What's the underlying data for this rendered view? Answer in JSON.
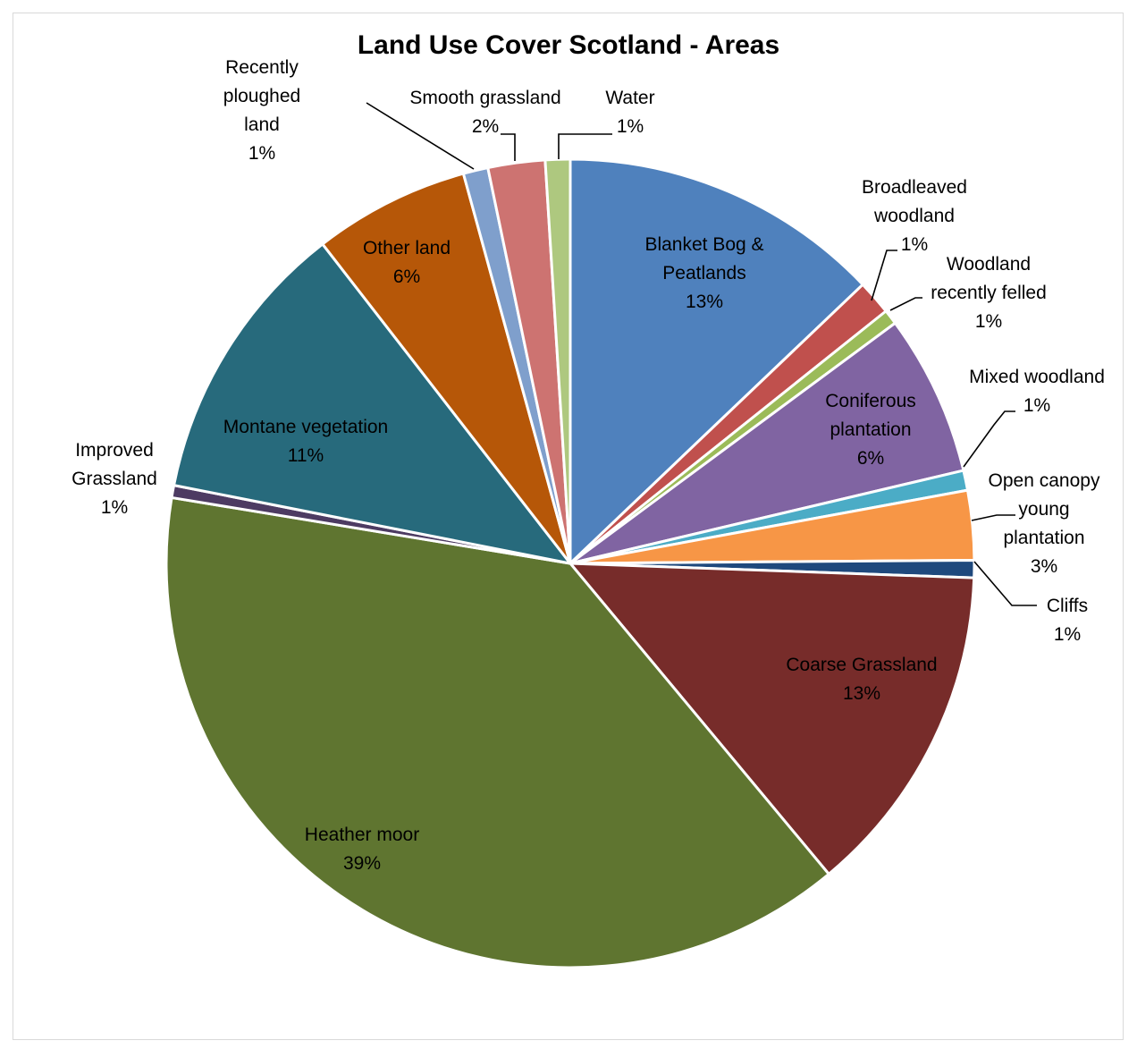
{
  "chart_data": {
    "type": "pie",
    "title": "Land Use Cover Scotland - Areas",
    "slices": [
      {
        "name": "Blanket Bog & Peatlands",
        "value": 13,
        "pct_label": "13%",
        "color": "#4f81bd"
      },
      {
        "name": "Broadleaved woodland",
        "value": 1.4,
        "pct_label": "1%",
        "color": "#c0504d"
      },
      {
        "name": "Woodland recently felled",
        "value": 0.6,
        "pct_label": "1%",
        "color": "#9bbb59"
      },
      {
        "name": "Coniferous plantation",
        "value": 6.5,
        "pct_label": "6%",
        "color": "#8064a2"
      },
      {
        "name": "Mixed woodland",
        "value": 0.8,
        "pct_label": "1%",
        "color": "#4bacc6"
      },
      {
        "name": "Open canopy young plantation",
        "value": 2.8,
        "pct_label": "3%",
        "color": "#f79646"
      },
      {
        "name": "Cliffs",
        "value": 0.7,
        "pct_label": "1%",
        "color": "#1f497d"
      },
      {
        "name": "Coarse Grassland",
        "value": 13.5,
        "pct_label": "13%",
        "color": "#772c2a"
      },
      {
        "name": "Heather moor",
        "value": 39,
        "pct_label": "39%",
        "color": "#5f7530"
      },
      {
        "name": "Improved Grassland",
        "value": 0.5,
        "pct_label": "1%",
        "color": "#4d3b62"
      },
      {
        "name": "Montane vegetation",
        "value": 11.5,
        "pct_label": "11%",
        "color": "#276a7c"
      },
      {
        "name": "Other land",
        "value": 6.3,
        "pct_label": "6%",
        "color": "#b65708"
      },
      {
        "name": "Recently ploughed land",
        "value": 1,
        "pct_label": "1%",
        "color": "#7f9fcc"
      },
      {
        "name": "Smooth grassland",
        "value": 2.3,
        "pct_label": "2%",
        "color": "#cd7371"
      },
      {
        "name": "Water",
        "value": 1.0,
        "pct_label": "1%",
        "color": "#aec87f"
      }
    ]
  }
}
